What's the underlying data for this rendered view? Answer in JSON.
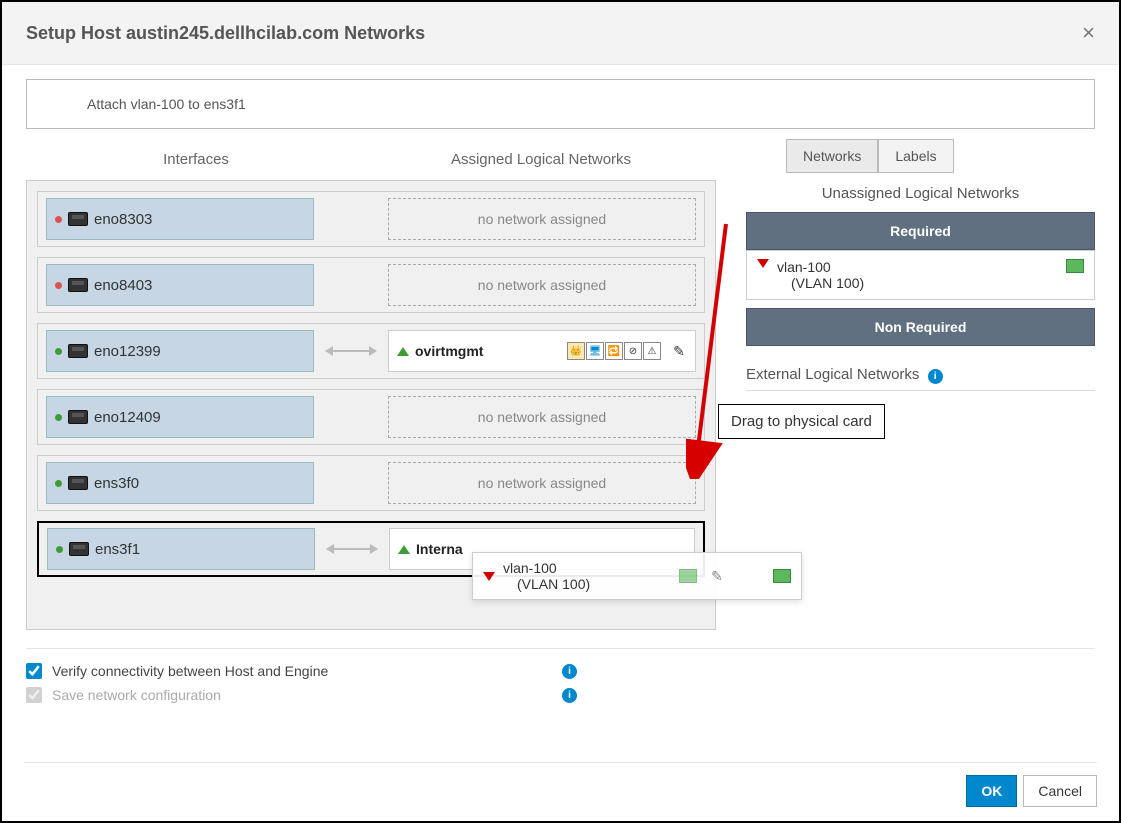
{
  "dialog": {
    "title": "Setup Host austin245.dellhcilab.com Networks",
    "message": "Attach vlan-100 to ens3f1"
  },
  "headers": {
    "interfaces": "Interfaces",
    "assigned": "Assigned Logical Networks"
  },
  "interfaces": [
    {
      "name": "eno8303",
      "status": "red",
      "assigned": null
    },
    {
      "name": "eno8403",
      "status": "red",
      "assigned": null
    },
    {
      "name": "eno12399",
      "status": "green",
      "assigned": {
        "name": "ovirtmgmt",
        "direction": "up",
        "showIcons": true
      }
    },
    {
      "name": "eno12409",
      "status": "green",
      "assigned": null
    },
    {
      "name": "ens3f0",
      "status": "green",
      "assigned": null
    },
    {
      "name": "ens3f1",
      "status": "green",
      "active": true,
      "assigned": {
        "name": "Interna",
        "direction": "up",
        "showIcons": false
      }
    }
  ],
  "no_network_text": "no network assigned",
  "tabs": {
    "networks": "Networks",
    "labels": "Labels"
  },
  "right": {
    "unassigned_title": "Unassigned Logical Networks",
    "required": "Required",
    "non_required": "Non Required",
    "item": {
      "name": "vlan-100",
      "sub": "(VLAN 100)"
    },
    "external": "External Logical Networks"
  },
  "drag_ghost": {
    "name": "vlan-100",
    "sub": "(VLAN 100)"
  },
  "annotation": "Drag to physical card",
  "checks": {
    "verify": "Verify connectivity between Host and Engine",
    "save": "Save network configuration"
  },
  "buttons": {
    "ok": "OK",
    "cancel": "Cancel"
  },
  "colors": {
    "primary": "#0088ce",
    "header_bg": "#607080",
    "iface_bg": "#c6d6e4",
    "arrow": "#d60000"
  }
}
